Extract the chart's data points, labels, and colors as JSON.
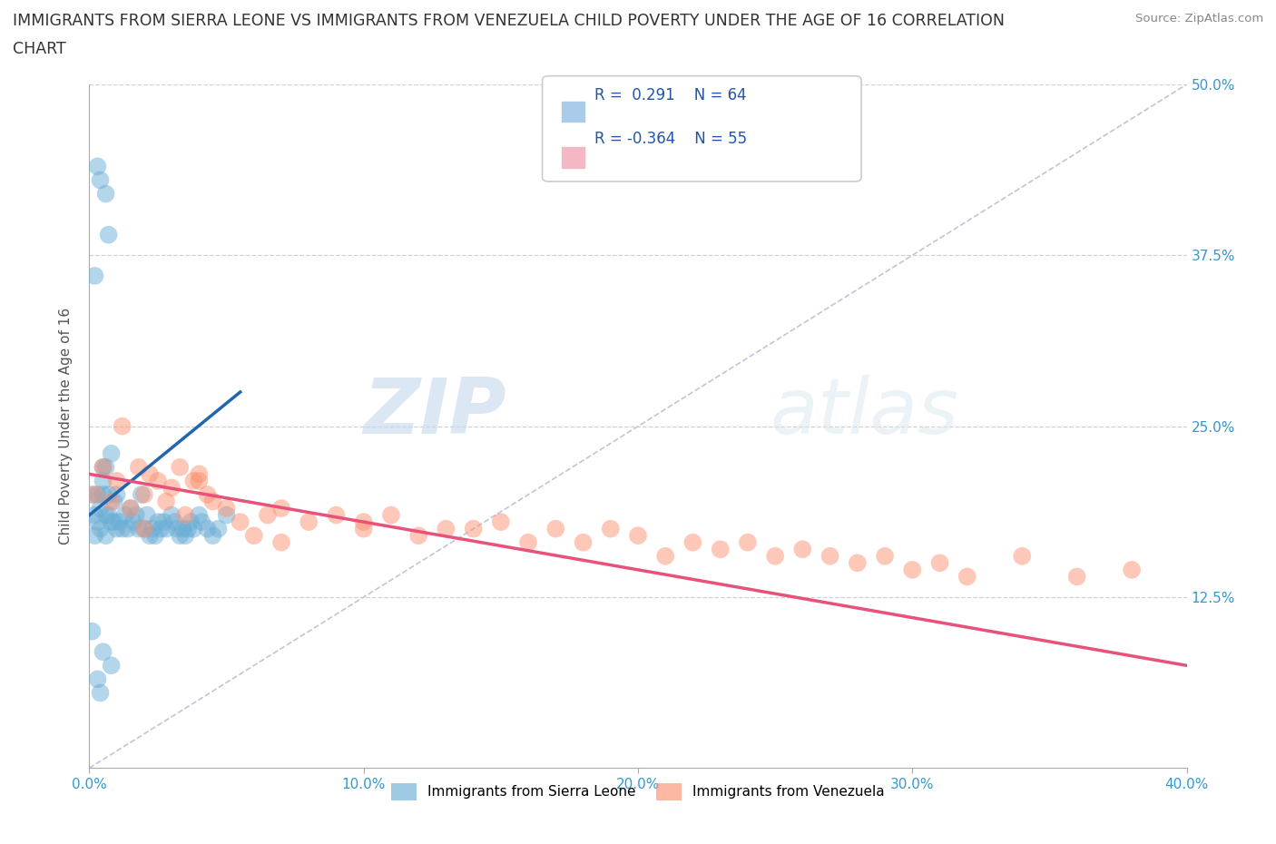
{
  "title_line1": "IMMIGRANTS FROM SIERRA LEONE VS IMMIGRANTS FROM VENEZUELA CHILD POVERTY UNDER THE AGE OF 16 CORRELATION",
  "title_line2": "CHART",
  "source_text": "Source: ZipAtlas.com",
  "ylabel": "Child Poverty Under the Age of 16",
  "xlim": [
    0,
    0.4
  ],
  "ylim": [
    0,
    0.5
  ],
  "xticks": [
    0.0,
    0.1,
    0.2,
    0.3,
    0.4
  ],
  "xticklabels": [
    "0.0%",
    "10.0%",
    "20.0%",
    "30.0%",
    "40.0%"
  ],
  "yticks": [
    0.0,
    0.125,
    0.25,
    0.375,
    0.5
  ],
  "yticklabels": [
    "",
    "12.5%",
    "25.0%",
    "37.5%",
    "50.0%"
  ],
  "color_sierra": "#6baed6",
  "color_venezuela": "#fc9272",
  "R_sierra": 0.291,
  "N_sierra": 64,
  "R_venezuela": -0.364,
  "N_venezuela": 55,
  "sierra_x": [
    0.001,
    0.002,
    0.002,
    0.003,
    0.003,
    0.004,
    0.004,
    0.005,
    0.005,
    0.005,
    0.006,
    0.006,
    0.006,
    0.007,
    0.007,
    0.008,
    0.008,
    0.009,
    0.009,
    0.01,
    0.01,
    0.011,
    0.012,
    0.013,
    0.014,
    0.015,
    0.016,
    0.017,
    0.018,
    0.019,
    0.02,
    0.021,
    0.022,
    0.023,
    0.024,
    0.025,
    0.026,
    0.027,
    0.028,
    0.03,
    0.031,
    0.032,
    0.033,
    0.034,
    0.035,
    0.036,
    0.037,
    0.038,
    0.04,
    0.041,
    0.043,
    0.045,
    0.047,
    0.05,
    0.003,
    0.004,
    0.006,
    0.007,
    0.002,
    0.001,
    0.005,
    0.008,
    0.003,
    0.004
  ],
  "sierra_y": [
    0.2,
    0.185,
    0.17,
    0.18,
    0.2,
    0.19,
    0.175,
    0.22,
    0.2,
    0.21,
    0.185,
    0.17,
    0.22,
    0.2,
    0.185,
    0.23,
    0.18,
    0.195,
    0.18,
    0.2,
    0.175,
    0.18,
    0.175,
    0.185,
    0.175,
    0.19,
    0.18,
    0.185,
    0.175,
    0.2,
    0.175,
    0.185,
    0.17,
    0.175,
    0.17,
    0.18,
    0.175,
    0.18,
    0.175,
    0.185,
    0.18,
    0.175,
    0.17,
    0.175,
    0.17,
    0.175,
    0.18,
    0.175,
    0.185,
    0.18,
    0.175,
    0.17,
    0.175,
    0.185,
    0.44,
    0.43,
    0.42,
    0.39,
    0.36,
    0.1,
    0.085,
    0.075,
    0.065,
    0.055
  ],
  "venezuela_x": [
    0.002,
    0.005,
    0.008,
    0.01,
    0.012,
    0.015,
    0.018,
    0.02,
    0.022,
    0.025,
    0.028,
    0.03,
    0.033,
    0.035,
    0.038,
    0.04,
    0.043,
    0.045,
    0.05,
    0.055,
    0.06,
    0.065,
    0.07,
    0.08,
    0.09,
    0.1,
    0.11,
    0.12,
    0.13,
    0.14,
    0.15,
    0.16,
    0.17,
    0.18,
    0.19,
    0.2,
    0.21,
    0.22,
    0.23,
    0.24,
    0.25,
    0.26,
    0.27,
    0.28,
    0.29,
    0.3,
    0.31,
    0.32,
    0.34,
    0.36,
    0.38,
    0.02,
    0.04,
    0.07,
    0.1
  ],
  "venezuela_y": [
    0.2,
    0.22,
    0.195,
    0.21,
    0.25,
    0.19,
    0.22,
    0.2,
    0.215,
    0.21,
    0.195,
    0.205,
    0.22,
    0.185,
    0.21,
    0.215,
    0.2,
    0.195,
    0.19,
    0.18,
    0.17,
    0.185,
    0.19,
    0.18,
    0.185,
    0.175,
    0.185,
    0.17,
    0.175,
    0.175,
    0.18,
    0.165,
    0.175,
    0.165,
    0.175,
    0.17,
    0.155,
    0.165,
    0.16,
    0.165,
    0.155,
    0.16,
    0.155,
    0.15,
    0.155,
    0.145,
    0.15,
    0.14,
    0.155,
    0.14,
    0.145,
    0.175,
    0.21,
    0.165,
    0.18
  ]
}
